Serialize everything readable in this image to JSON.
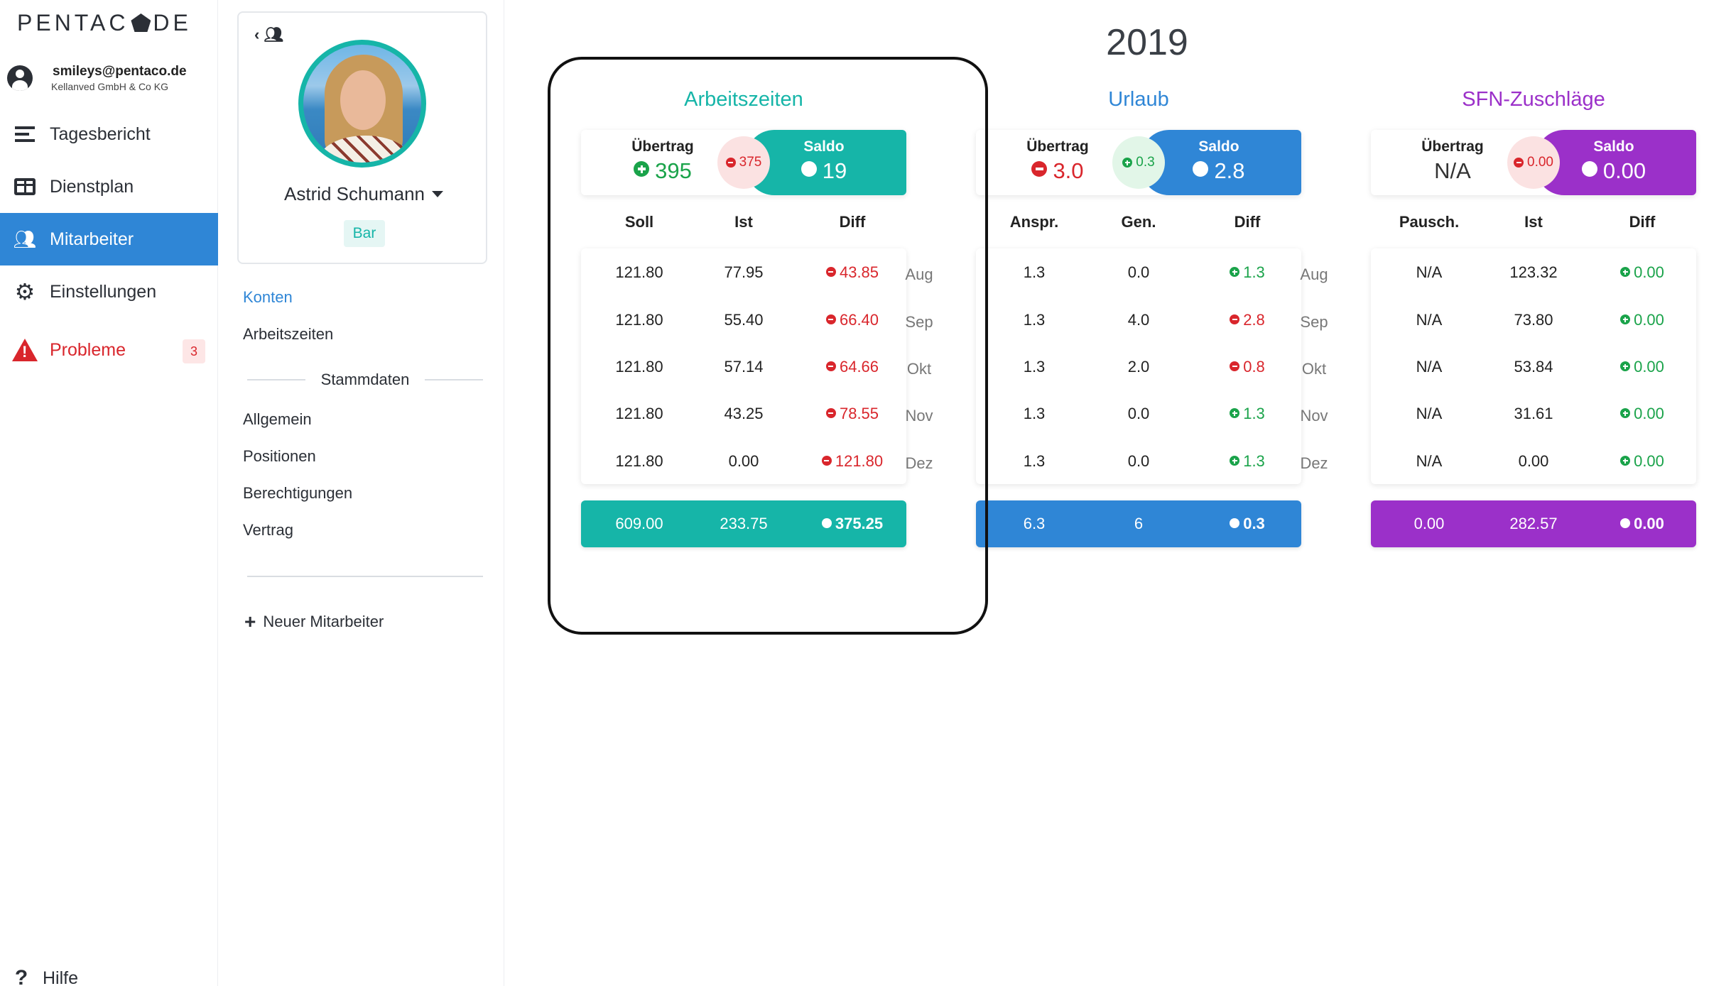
{
  "app": {
    "logo_left": "PENTAC",
    "logo_right": "DE"
  },
  "user": {
    "email": "smileys@pentaco.de",
    "company": "Kellanved GmbH & Co KG"
  },
  "nav": {
    "tagesbericht": "Tagesbericht",
    "dienstplan": "Dienstplan",
    "mitarbeiter": "Mitarbeiter",
    "einstellungen": "Einstellungen",
    "probleme": "Probleme",
    "probleme_count": "3",
    "hilfe": "Hilfe"
  },
  "profile": {
    "name": "Astrid Schumann",
    "role": "Bar"
  },
  "subnav": {
    "konten": "Konten",
    "arbeitszeiten": "Arbeitszeiten",
    "stammdaten": "Stammdaten",
    "allgemein": "Allgemein",
    "positionen": "Positionen",
    "berechtigungen": "Berechtigungen",
    "vertrag": "Vertrag",
    "neuer_mitarbeiter": "Neuer Mitarbeiter"
  },
  "year": "2019",
  "months": [
    "Aug",
    "Sep",
    "Okt",
    "Nov",
    "Dez"
  ],
  "colors": {
    "teal": "#16b5a8",
    "blue": "#2f86d6",
    "purple": "#9b30c9",
    "red": "#d9262c",
    "green": "#1aa34a"
  },
  "arbeitszeiten": {
    "title": "Arbeitszeiten",
    "uebertrag_label": "Übertrag",
    "uebertrag": "395",
    "bubble": "375",
    "saldo_label": "Saldo",
    "saldo": "19",
    "headers": [
      "Soll",
      "Ist",
      "Diff"
    ],
    "rows": [
      [
        "121.80",
        "77.95",
        "43.85"
      ],
      [
        "121.80",
        "55.40",
        "66.40"
      ],
      [
        "121.80",
        "57.14",
        "64.66"
      ],
      [
        "121.80",
        "43.25",
        "78.55"
      ],
      [
        "121.80",
        "0.00",
        "121.80"
      ]
    ],
    "totals": [
      "609.00",
      "233.75",
      "375.25"
    ]
  },
  "urlaub": {
    "title": "Urlaub",
    "uebertrag_label": "Übertrag",
    "uebertrag": "3.0",
    "bubble": "0.3",
    "saldo_label": "Saldo",
    "saldo": "2.8",
    "headers": [
      "Anspr.",
      "Gen.",
      "Diff"
    ],
    "rows": [
      [
        "1.3",
        "0.0",
        "1.3"
      ],
      [
        "1.3",
        "4.0",
        "2.8"
      ],
      [
        "1.3",
        "2.0",
        "0.8"
      ],
      [
        "1.3",
        "0.0",
        "1.3"
      ],
      [
        "1.3",
        "0.0",
        "1.3"
      ]
    ],
    "totals": [
      "6.3",
      "6",
      "0.3"
    ]
  },
  "sfn": {
    "title": "SFN-Zuschläge",
    "uebertrag_label": "Übertrag",
    "uebertrag": "N/A",
    "bubble": "0.00",
    "saldo_label": "Saldo",
    "saldo": "0.00",
    "headers": [
      "Pausch.",
      "Ist",
      "Diff"
    ],
    "rows": [
      [
        "N/A",
        "123.32",
        "0.00"
      ],
      [
        "N/A",
        "73.80",
        "0.00"
      ],
      [
        "N/A",
        "53.84",
        "0.00"
      ],
      [
        "N/A",
        "31.61",
        "0.00"
      ],
      [
        "N/A",
        "0.00",
        "0.00"
      ]
    ],
    "totals": [
      "0.00",
      "282.57",
      "0.00"
    ]
  }
}
